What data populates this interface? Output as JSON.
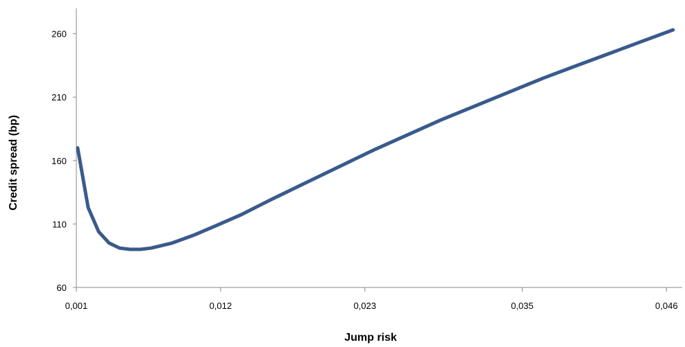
{
  "chart_data": {
    "type": "line",
    "title": "",
    "xlabel": "Jump risk",
    "ylabel": "Credit spread (bp)",
    "x_ticks": [
      "0,001",
      "0,012",
      "0,023",
      "0,035",
      "0,046"
    ],
    "x_tick_values": [
      0.001,
      0.012,
      0.023,
      0.035,
      0.046
    ],
    "y_ticks": [
      "60",
      "110",
      "160",
      "210",
      "260"
    ],
    "y_tick_values": [
      60,
      110,
      160,
      210,
      260
    ],
    "xlim": [
      0.001,
      0.0472
    ],
    "ylim": [
      60,
      280
    ],
    "grid": false,
    "legend": "none",
    "series": [
      {
        "color": "#3a5a8c",
        "x": [
          0.0011,
          0.0019,
          0.0027,
          0.0035,
          0.0043,
          0.0051,
          0.0059,
          0.0067,
          0.0075,
          0.0083,
          0.0099,
          0.0115,
          0.0135,
          0.0158,
          0.0184,
          0.021,
          0.0236,
          0.0262,
          0.0288,
          0.0314,
          0.034,
          0.0366,
          0.0392,
          0.0418,
          0.0444,
          0.0465
        ],
        "y": [
          170,
          123,
          104,
          95,
          91,
          90,
          90,
          91,
          93,
          95,
          101,
          108,
          117,
          129,
          142,
          155,
          168,
          180,
          192,
          203,
          214,
          225,
          235,
          245,
          255,
          263
        ]
      }
    ]
  }
}
